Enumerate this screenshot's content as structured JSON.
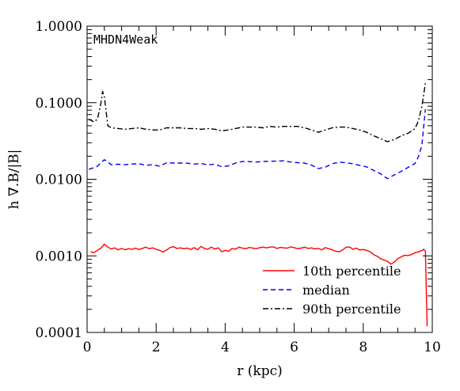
{
  "chart_data": {
    "type": "line",
    "title": "MHDN4Weak",
    "xlabel": "r (kpc)",
    "ylabel": "h ∇.B/|B|",
    "xlim": [
      0,
      10
    ],
    "ylim": [
      0.0001,
      1.0
    ],
    "yscale": "log",
    "x_ticks": [
      0,
      2,
      4,
      6,
      8,
      10
    ],
    "x_tick_labels": [
      "0",
      "2",
      "4",
      "6",
      "8",
      "10"
    ],
    "y_ticks": [
      0.0001,
      0.001,
      0.01,
      0.1,
      1.0
    ],
    "y_tick_labels": [
      "0.0001",
      "0.0010",
      "0.0100",
      "0.1000",
      "1.0000"
    ],
    "legend_position": "bottom-right",
    "series": [
      {
        "name": "10th percentile",
        "color": "#ff0000",
        "dash": "solid",
        "x": [
          0.1,
          0.2,
          0.3,
          0.4,
          0.5,
          0.6,
          0.7,
          0.8,
          0.9,
          1.0,
          1.1,
          1.2,
          1.3,
          1.4,
          1.5,
          1.6,
          1.7,
          1.8,
          1.9,
          2.0,
          2.1,
          2.2,
          2.3,
          2.4,
          2.5,
          2.6,
          2.7,
          2.8,
          2.9,
          3.0,
          3.1,
          3.2,
          3.3,
          3.4,
          3.5,
          3.6,
          3.7,
          3.8,
          3.9,
          4.0,
          4.1,
          4.2,
          4.3,
          4.4,
          4.5,
          4.6,
          4.7,
          4.8,
          4.9,
          5.0,
          5.1,
          5.2,
          5.3,
          5.4,
          5.5,
          5.6,
          5.7,
          5.8,
          5.9,
          6.0,
          6.1,
          6.2,
          6.3,
          6.4,
          6.5,
          6.6,
          6.7,
          6.8,
          6.9,
          7.0,
          7.1,
          7.2,
          7.3,
          7.4,
          7.5,
          7.6,
          7.7,
          7.8,
          7.9,
          8.0,
          8.1,
          8.2,
          8.3,
          8.4,
          8.5,
          8.6,
          8.7,
          8.8,
          8.9,
          9.0,
          9.1,
          9.2,
          9.3,
          9.4,
          9.5,
          9.6,
          9.7,
          9.75,
          9.8,
          9.85
        ],
        "y": [
          0.00113,
          0.0011,
          0.00118,
          0.00126,
          0.00142,
          0.0013,
          0.00123,
          0.00127,
          0.0012,
          0.00125,
          0.0012,
          0.00124,
          0.00122,
          0.00126,
          0.00121,
          0.00125,
          0.0013,
          0.00124,
          0.00127,
          0.00122,
          0.00118,
          0.00112,
          0.00119,
          0.00128,
          0.00132,
          0.00125,
          0.00127,
          0.00124,
          0.00126,
          0.00121,
          0.00128,
          0.0012,
          0.00133,
          0.00125,
          0.00122,
          0.0013,
          0.00123,
          0.00127,
          0.00113,
          0.00118,
          0.00115,
          0.00125,
          0.00122,
          0.0013,
          0.00126,
          0.00124,
          0.00129,
          0.00126,
          0.00124,
          0.00128,
          0.0013,
          0.00127,
          0.0013,
          0.00131,
          0.00125,
          0.00129,
          0.00127,
          0.00126,
          0.00131,
          0.00128,
          0.00124,
          0.00126,
          0.0013,
          0.00125,
          0.00127,
          0.00123,
          0.00125,
          0.0012,
          0.00128,
          0.00124,
          0.0012,
          0.00115,
          0.00113,
          0.00119,
          0.00129,
          0.00131,
          0.00122,
          0.00126,
          0.00119,
          0.00121,
          0.00118,
          0.00113,
          0.00104,
          0.00099,
          0.00092,
          0.00088,
          0.00085,
          0.00078,
          0.00083,
          0.00092,
          0.00097,
          0.00102,
          0.00101,
          0.00104,
          0.0011,
          0.00113,
          0.00117,
          0.00122,
          0.00115,
          0.00012
        ]
      },
      {
        "name": "median",
        "color": "#0000ff",
        "dash": "dashed",
        "x": [
          0.05,
          0.2,
          0.3,
          0.4,
          0.5,
          0.6,
          0.7,
          0.9,
          1.1,
          1.3,
          1.5,
          1.7,
          1.9,
          2.1,
          2.3,
          2.5,
          2.7,
          2.9,
          3.1,
          3.3,
          3.5,
          3.7,
          3.9,
          4.1,
          4.3,
          4.5,
          4.7,
          4.9,
          5.1,
          5.3,
          5.5,
          5.7,
          5.9,
          6.1,
          6.3,
          6.5,
          6.7,
          6.9,
          7.1,
          7.3,
          7.5,
          7.7,
          7.9,
          8.1,
          8.3,
          8.5,
          8.7,
          8.9,
          9.1,
          9.3,
          9.5,
          9.6,
          9.7,
          9.8
        ],
        "y": [
          0.0135,
          0.0142,
          0.0148,
          0.0165,
          0.018,
          0.0168,
          0.0155,
          0.0157,
          0.0155,
          0.0158,
          0.016,
          0.0152,
          0.0155,
          0.0148,
          0.0164,
          0.0163,
          0.0163,
          0.0162,
          0.0158,
          0.0161,
          0.0154,
          0.0157,
          0.0146,
          0.015,
          0.0163,
          0.0171,
          0.017,
          0.0168,
          0.0171,
          0.0172,
          0.0173,
          0.0174,
          0.0168,
          0.0165,
          0.0163,
          0.0153,
          0.0138,
          0.0144,
          0.016,
          0.0167,
          0.0165,
          0.0159,
          0.0152,
          0.0145,
          0.0131,
          0.0118,
          0.0102,
          0.0114,
          0.0127,
          0.0143,
          0.0161,
          0.0198,
          0.028,
          0.082
        ]
      },
      {
        "name": "90th percentile",
        "color": "#000000",
        "dash": "dashdot",
        "x": [
          0.05,
          0.2,
          0.3,
          0.4,
          0.45,
          0.5,
          0.6,
          0.7,
          0.9,
          1.1,
          1.3,
          1.5,
          1.7,
          1.9,
          2.1,
          2.3,
          2.5,
          2.7,
          2.9,
          3.1,
          3.3,
          3.5,
          3.7,
          3.9,
          4.1,
          4.3,
          4.5,
          4.7,
          4.9,
          5.1,
          5.3,
          5.5,
          5.7,
          5.9,
          6.1,
          6.3,
          6.5,
          6.7,
          6.9,
          7.1,
          7.3,
          7.5,
          7.7,
          7.9,
          8.1,
          8.3,
          8.5,
          8.7,
          8.9,
          9.1,
          9.3,
          9.5,
          9.6,
          9.7,
          9.8
        ],
        "y": [
          0.061,
          0.056,
          0.061,
          0.098,
          0.14,
          0.12,
          0.05,
          0.047,
          0.046,
          0.045,
          0.046,
          0.047,
          0.045,
          0.044,
          0.044,
          0.047,
          0.047,
          0.047,
          0.046,
          0.046,
          0.045,
          0.046,
          0.045,
          0.043,
          0.044,
          0.046,
          0.048,
          0.048,
          0.048,
          0.047,
          0.049,
          0.048,
          0.049,
          0.049,
          0.049,
          0.047,
          0.044,
          0.041,
          0.044,
          0.047,
          0.048,
          0.048,
          0.046,
          0.044,
          0.041,
          0.037,
          0.034,
          0.031,
          0.033,
          0.037,
          0.04,
          0.046,
          0.058,
          0.09,
          0.18
        ]
      }
    ]
  }
}
